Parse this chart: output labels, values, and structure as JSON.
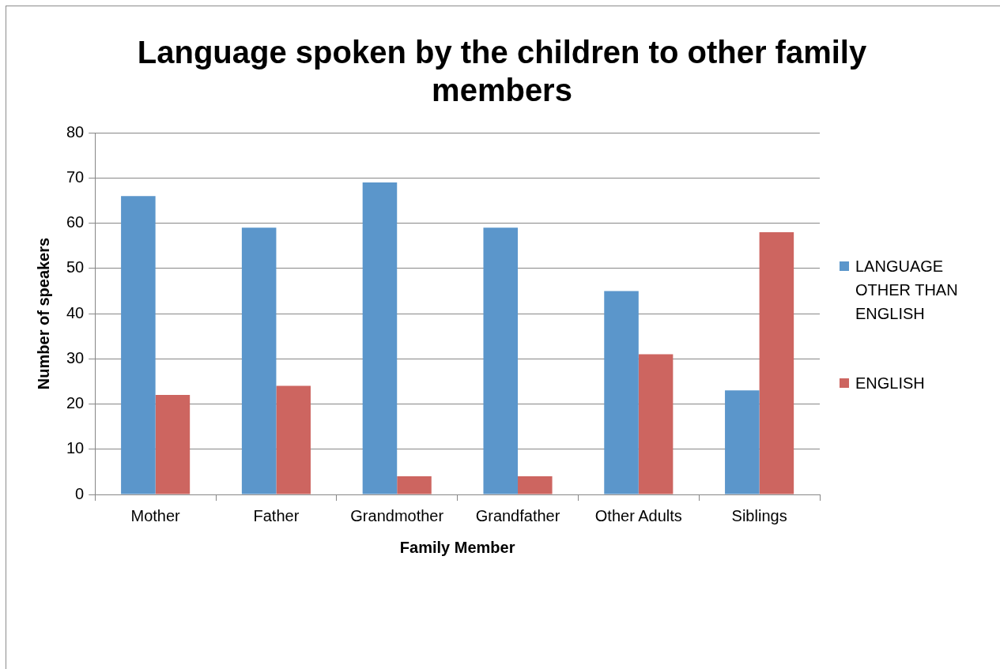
{
  "chart_data": {
    "type": "bar",
    "title": "Language spoken by the children to other family members",
    "xlabel": "Family Member",
    "ylabel": "Number of speakers",
    "categories": [
      "Mother",
      "Father",
      "Grandmother",
      "Grandfather",
      "Other Adults",
      "Siblings"
    ],
    "series": [
      {
        "name": "LANGUAGE OTHER THAN ENGLISH",
        "color": "#5b96cb",
        "values": [
          66,
          59,
          69,
          59,
          45,
          23
        ]
      },
      {
        "name": "ENGLISH",
        "color": "#cd6560",
        "values": [
          22,
          24,
          4,
          4,
          31,
          58
        ]
      }
    ],
    "ylim": [
      0,
      80
    ],
    "yticks": [
      0,
      10,
      20,
      30,
      40,
      50,
      60,
      70,
      80
    ],
    "grid": "y",
    "legend": "right"
  }
}
